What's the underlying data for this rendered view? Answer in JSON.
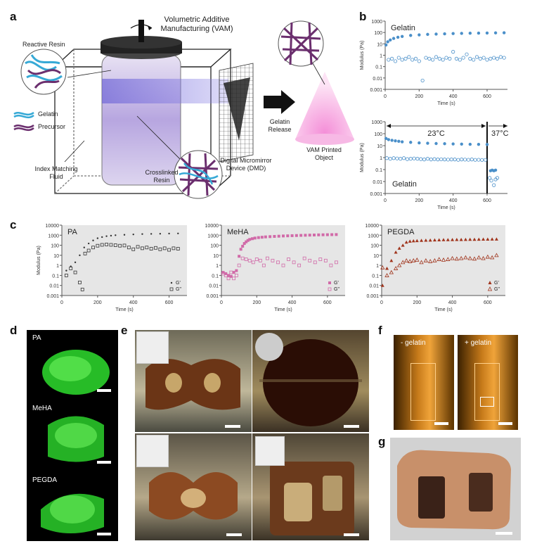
{
  "panels": {
    "a": "a",
    "b": "b",
    "c": "c",
    "d": "d",
    "e": "e",
    "f": "f",
    "g": "g"
  },
  "panel_a": {
    "vam_title": "Volumetric Additive",
    "vam_title2": "Manufacturing (VAM)",
    "reactive_resin": "Reactive Resin",
    "legend_gelatin": "Gelatin",
    "legend_precursor": "Precursor",
    "dmd_label1": "Digital Micromirror",
    "dmd_label2": "Device (DMD)",
    "index_label1": "Index Matching",
    "index_label2": "Fluid",
    "crosslinked1": "Crosslinked",
    "crosslinked2": "Resin",
    "gelatin_release1": "Gelatin",
    "gelatin_release2": "Release",
    "vam_printed1": "VAM Printed",
    "vam_printed2": "Object",
    "colors": {
      "gelatin": "#36a9d6",
      "precursor": "#6b2f6e",
      "resin": "#b7a6e0",
      "cone": "#f2a0dc"
    }
  },
  "panel_d": {
    "labels": [
      "PA",
      "MeHA",
      "PEGDA"
    ]
  },
  "panel_f": {
    "labels": [
      "- gelatin",
      "+ gelatin"
    ]
  },
  "chart_data": [
    {
      "id": "b-top",
      "type": "scatter",
      "title": "Gelatin",
      "xlabel": "Time (s)",
      "ylabel": "Modulus (Pa)",
      "log_y": true,
      "xlim": [
        0,
        720
      ],
      "ylim": [
        0.001,
        1000
      ],
      "xticks": [
        "0",
        "200",
        "400",
        "600"
      ],
      "yticks": [
        "0.001",
        "0.01",
        "0.1",
        "1",
        "10",
        "100",
        "1000"
      ],
      "series": [
        {
          "marker": "filled",
          "color": "#4a8fc9",
          "x": [
            5,
            15,
            30,
            50,
            75,
            100,
            150,
            200,
            250,
            300,
            350,
            400,
            450,
            500,
            550,
            600,
            650,
            700
          ],
          "y": [
            8,
            15,
            22,
            30,
            38,
            45,
            55,
            62,
            68,
            72,
            76,
            80,
            83,
            86,
            88,
            90,
            92,
            94
          ]
        },
        {
          "marker": "open",
          "color": "#4a8fc9",
          "x": [
            20,
            40,
            60,
            80,
            100,
            120,
            140,
            160,
            180,
            200,
            220,
            240,
            260,
            280,
            300,
            320,
            340,
            360,
            380,
            400,
            420,
            440,
            460,
            480,
            500,
            520,
            540,
            560,
            580,
            600,
            620,
            640,
            660,
            680,
            700
          ],
          "y": [
            0.4,
            0.5,
            0.3,
            0.6,
            0.4,
            0.5,
            0.7,
            0.4,
            0.5,
            0.3,
            0.006,
            0.6,
            0.5,
            0.4,
            0.7,
            0.5,
            0.4,
            0.6,
            0.5,
            2,
            0.5,
            0.4,
            0.6,
            1.2,
            0.5,
            0.4,
            0.7,
            0.5,
            0.6,
            0.4,
            0.5,
            0.6,
            0.5,
            0.7,
            0.6
          ]
        }
      ]
    },
    {
      "id": "b-bottom",
      "type": "scatter",
      "title": "Gelatin",
      "xlabel": "Time (s)",
      "ylabel": "Modulus (Pa)",
      "log_y": true,
      "xlim": [
        0,
        720
      ],
      "ylim": [
        0.001,
        1000
      ],
      "xticks": [
        "0",
        "200",
        "400",
        "600"
      ],
      "yticks": [
        "0.001",
        "0.01",
        "0.1",
        "1",
        "10",
        "100",
        "1000"
      ],
      "annotations": [
        "23°C",
        "37°C"
      ],
      "series": [
        {
          "marker": "filled",
          "color": "#4a8fc9",
          "x": [
            5,
            20,
            40,
            60,
            80,
            100,
            150,
            200,
            250,
            300,
            350,
            400,
            450,
            500,
            550,
            600,
            620,
            630,
            640,
            650
          ],
          "y": [
            40,
            32,
            28,
            25,
            23,
            21,
            19,
            17,
            16,
            15,
            14.5,
            14,
            13.5,
            13,
            12.8,
            12.5,
            0.08,
            0.09,
            0.08,
            0.09
          ]
        },
        {
          "marker": "open",
          "color": "#4a8fc9",
          "x": [
            10,
            30,
            50,
            70,
            90,
            110,
            130,
            150,
            170,
            190,
            210,
            230,
            250,
            270,
            290,
            310,
            330,
            350,
            370,
            390,
            410,
            430,
            450,
            470,
            490,
            510,
            530,
            550,
            570,
            590,
            615,
            625,
            640,
            650,
            660
          ],
          "y": [
            0.9,
            0.8,
            0.9,
            0.85,
            0.8,
            0.9,
            0.75,
            0.8,
            0.85,
            0.8,
            0.75,
            0.7,
            0.8,
            0.7,
            0.75,
            0.7,
            0.72,
            0.7,
            0.68,
            0.7,
            0.7,
            0.65,
            0.7,
            0.68,
            0.66,
            0.7,
            0.65,
            0.66,
            0.64,
            0.65,
            0.02,
            0.012,
            0.005,
            0.015,
            0.02
          ]
        }
      ]
    },
    {
      "id": "c-PA",
      "type": "scatter",
      "title": "PA",
      "xlabel": "Time (s)",
      "ylabel": "Modulus (Pa)",
      "log_y": true,
      "xlim": [
        0,
        700
      ],
      "ylim": [
        0.001,
        10000
      ],
      "xticks": [
        "0",
        "200",
        "400",
        "600"
      ],
      "yticks": [
        "0.001",
        "0.01",
        "0.1",
        "1",
        "10",
        "100",
        "1000",
        "10000"
      ],
      "legend": [
        "G'",
        "G\""
      ],
      "series": [
        {
          "name": "G'",
          "marker": "dot",
          "color": "#333",
          "x": [
            25,
            50,
            75,
            100,
            125,
            150,
            175,
            200,
            225,
            250,
            275,
            300,
            350,
            400,
            450,
            500,
            550,
            600,
            650
          ],
          "y": [
            0.3,
            0.8,
            2,
            10,
            60,
            150,
            300,
            500,
            650,
            800,
            900,
            1000,
            1100,
            1200,
            1300,
            1350,
            1400,
            1450,
            1500
          ]
        },
        {
          "name": "G\"",
          "marker": "open-square",
          "color": "#333",
          "x": [
            25,
            50,
            75,
            100,
            115,
            130,
            150,
            175,
            200,
            225,
            250,
            275,
            300,
            325,
            350,
            375,
            400,
            425,
            450,
            475,
            500,
            525,
            550,
            575,
            600,
            625,
            650
          ],
          "y": [
            0.1,
            0.5,
            0.2,
            0.02,
            0.004,
            15,
            30,
            60,
            90,
            110,
            120,
            110,
            100,
            90,
            95,
            60,
            40,
            70,
            50,
            60,
            45,
            55,
            40,
            50,
            35,
            50,
            45
          ]
        }
      ]
    },
    {
      "id": "c-MeHA",
      "type": "scatter",
      "title": "MeHA",
      "xlabel": "Time (s)",
      "ylabel": "",
      "log_y": true,
      "xlim": [
        0,
        700
      ],
      "ylim": [
        0.001,
        10000
      ],
      "xticks": [
        "0",
        "200",
        "400",
        "600"
      ],
      "yticks": [
        "0.001",
        "0.01",
        "0.1",
        "1",
        "10",
        "100",
        "1000",
        "10000"
      ],
      "legend": [
        "G'",
        "G\""
      ],
      "series": [
        {
          "name": "G'",
          "marker": "filled-square",
          "color": "#d16aa8",
          "x": [
            10,
            25,
            40,
            55,
            70,
            85,
            100,
            110,
            120,
            130,
            140,
            150,
            160,
            175,
            190,
            210,
            230,
            250,
            275,
            300,
            325,
            350,
            375,
            400,
            425,
            450,
            475,
            500,
            525,
            550,
            575,
            600,
            625,
            650
          ],
          "y": [
            0.2,
            0.15,
            0.1,
            0.08,
            0.2,
            0.3,
            8,
            40,
            80,
            150,
            220,
            300,
            380,
            450,
            520,
            580,
            630,
            680,
            720,
            760,
            800,
            840,
            870,
            900,
            930,
            960,
            990,
            1020,
            1050,
            1080,
            1100,
            1120,
            1140,
            1160
          ]
        },
        {
          "name": "G\"",
          "marker": "open-square",
          "color": "#d16aa8",
          "x": [
            10,
            25,
            40,
            55,
            70,
            85,
            100,
            120,
            140,
            160,
            180,
            200,
            220,
            240,
            260,
            290,
            320,
            350,
            380,
            410,
            440,
            470,
            500,
            530,
            560,
            590,
            620,
            650
          ],
          "y": [
            0.15,
            0.1,
            0.05,
            0.2,
            0.05,
            0.1,
            1,
            5,
            4,
            3,
            2,
            4,
            3,
            1,
            5,
            3,
            2,
            1,
            4,
            2,
            1,
            5,
            3,
            2,
            4,
            3,
            1,
            2
          ]
        }
      ]
    },
    {
      "id": "c-PEGDA",
      "type": "scatter",
      "title": "PEGDA",
      "xlabel": "Time (s)",
      "ylabel": "",
      "log_y": true,
      "xlim": [
        0,
        700
      ],
      "ylim": [
        0.001,
        10000
      ],
      "xticks": [
        "0",
        "200",
        "400",
        "600"
      ],
      "yticks": [
        "0.001",
        "0.01",
        "0.1",
        "1",
        "10",
        "100",
        "1000",
        "10000"
      ],
      "legend": [
        "G'",
        "G\""
      ],
      "series": [
        {
          "name": "G'",
          "marker": "filled-triangle",
          "color": "#a0341c",
          "x": [
            5,
            30,
            55,
            80,
            100,
            120,
            140,
            160,
            180,
            200,
            225,
            250,
            275,
            300,
            325,
            350,
            375,
            400,
            425,
            450,
            475,
            500,
            525,
            550,
            575,
            600,
            625,
            650
          ],
          "y": [
            0.01,
            0.5,
            3,
            20,
            50,
            100,
            200,
            250,
            270,
            280,
            300,
            310,
            320,
            330,
            340,
            350,
            355,
            360,
            365,
            370,
            375,
            380,
            385,
            390,
            395,
            400,
            405,
            410
          ]
        },
        {
          "name": "G\"",
          "marker": "open-triangle",
          "color": "#a0341c",
          "x": [
            5,
            30,
            55,
            80,
            100,
            120,
            140,
            160,
            180,
            200,
            225,
            250,
            275,
            300,
            325,
            350,
            375,
            400,
            425,
            450,
            475,
            500,
            525,
            550,
            575,
            600,
            625,
            650
          ],
          "y": [
            0.6,
            0.1,
            0.2,
            0.5,
            1,
            2,
            3,
            2.5,
            3,
            3.5,
            2,
            3,
            2.5,
            3,
            4,
            3.5,
            4,
            5,
            4.5,
            5,
            6,
            5,
            4.5,
            6,
            5,
            7,
            6,
            10
          ]
        }
      ]
    }
  ]
}
